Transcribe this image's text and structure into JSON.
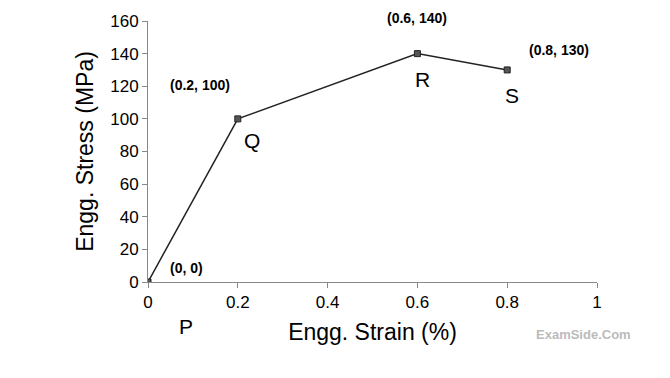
{
  "chart_data": {
    "type": "line",
    "x_label": "Engg. Strain (%)",
    "y_label": "Engg. Stress (MPa)",
    "x": [
      0,
      0.2,
      0.6,
      0.8
    ],
    "values": [
      0,
      100,
      140,
      130
    ],
    "point_labels": [
      "P",
      "Q",
      "R",
      "S"
    ],
    "data_labels": true,
    "value_labels": [
      "(0, 0)",
      "(0.2, 100)",
      "(0.6, 140)",
      "(0.8, 130)"
    ],
    "annotations": [
      "ExamSide.Com"
    ],
    "color": "#222222",
    "marker": "square",
    "xlim": [
      0,
      1
    ],
    "xticks": [
      0,
      0.2,
      0.4,
      0.6,
      0.8,
      1
    ],
    "ylim": [
      0,
      160
    ],
    "yticks": [
      0,
      20,
      40,
      60,
      80,
      100,
      120,
      140,
      160
    ],
    "grid": false
  }
}
